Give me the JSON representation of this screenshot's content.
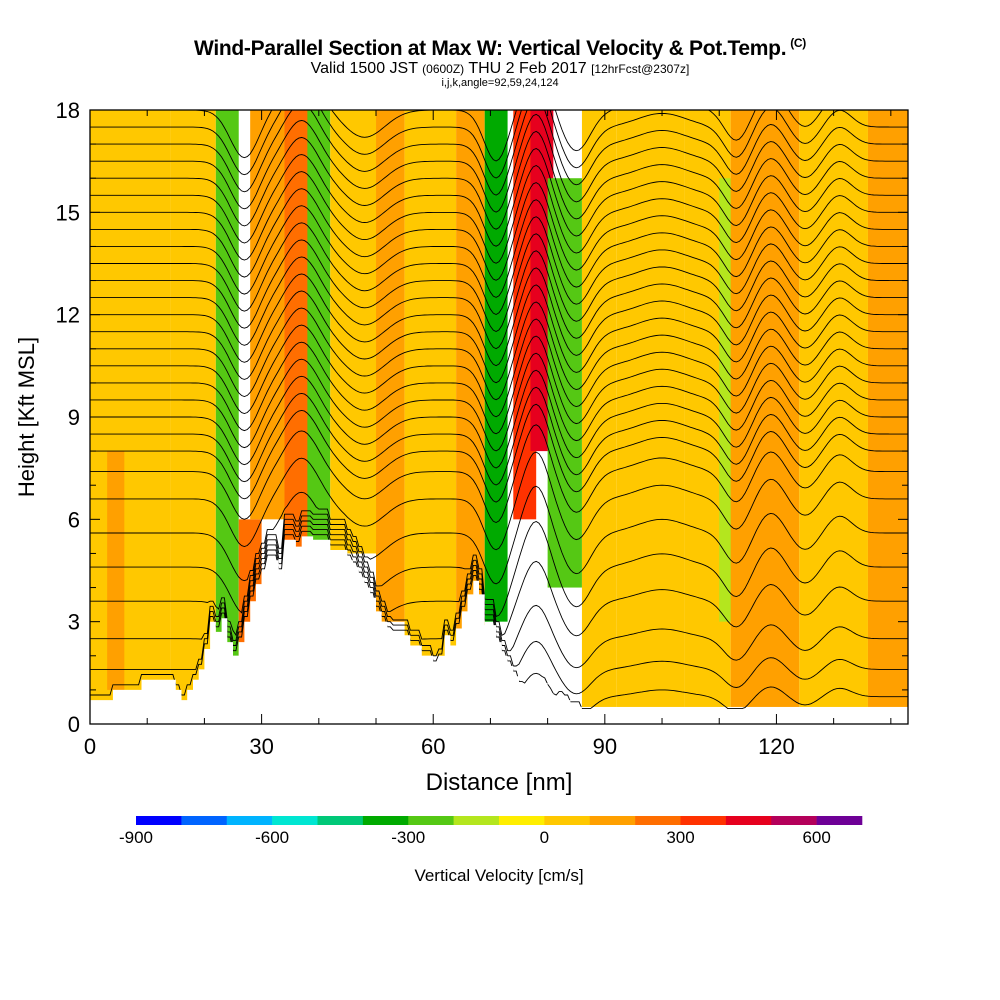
{
  "header": {
    "title": "Wind-Parallel Section at Max W: Vertical Velocity & Pot.Temp.",
    "title_tag": "(C)",
    "subtitle_main": "Valid 1500 JST",
    "subtitle_z": "(0600Z)",
    "subtitle_date": "THU 2 Feb 2017",
    "subtitle_fcst": "[12hrFcst@2307z]",
    "subsubtitle": "i,j,k,angle=92,59,24,124"
  },
  "chart_data": {
    "type": "heatmap",
    "xlabel": "Distance [nm]",
    "ylabel": "Height [Kft MSL]",
    "xlim": [
      0,
      143
    ],
    "ylim": [
      0,
      18
    ],
    "x_ticks": [
      0,
      30,
      60,
      90,
      120
    ],
    "y_ticks": [
      0,
      3,
      6,
      9,
      12,
      15,
      18
    ],
    "grid": false,
    "colorbar": {
      "label": "Vertical Velocity [cm/s]",
      "levels": [
        -900,
        -800,
        -700,
        -600,
        -500,
        -400,
        -300,
        -200,
        -100,
        0,
        100,
        200,
        300,
        400,
        500,
        600,
        700
      ],
      "tick_labels": [
        "-900",
        "-600",
        "-300",
        "0",
        "300",
        "600"
      ],
      "colors": [
        "#0000ff",
        "#0064ff",
        "#00b4ff",
        "#00e6d2",
        "#00c878",
        "#00aa00",
        "#55c814",
        "#b4e61e",
        "#ffee00",
        "#ffc800",
        "#ffa000",
        "#ff6e00",
        "#ff3200",
        "#e6001e",
        "#b4005a",
        "#6e0096"
      ]
    },
    "velocity_cells": [
      {
        "x": [
          0,
          14
        ],
        "y": [
          0,
          18
        ],
        "value": 50
      },
      {
        "x": [
          3,
          6
        ],
        "y": [
          1,
          8
        ],
        "value": 120
      },
      {
        "x": [
          14,
          22
        ],
        "y": [
          0,
          18
        ],
        "value": 20
      },
      {
        "x": [
          22,
          26
        ],
        "y": [
          2,
          18
        ],
        "value": -230
      },
      {
        "x": [
          26,
          30
        ],
        "y": [
          1,
          6
        ],
        "value": 250
      },
      {
        "x": [
          28,
          34
        ],
        "y": [
          6,
          18
        ],
        "value": 100
      },
      {
        "x": [
          34,
          39
        ],
        "y": [
          4,
          18
        ],
        "value": 240
      },
      {
        "x": [
          38,
          42
        ],
        "y": [
          5,
          18
        ],
        "value": -250
      },
      {
        "x": [
          42,
          50
        ],
        "y": [
          5,
          18
        ],
        "value": 20
      },
      {
        "x": [
          50,
          55
        ],
        "y": [
          3,
          18
        ],
        "value": 120
      },
      {
        "x": [
          55,
          64
        ],
        "y": [
          2,
          18
        ],
        "value": 40
      },
      {
        "x": [
          64,
          69
        ],
        "y": [
          2,
          18
        ],
        "value": 130
      },
      {
        "x": [
          69,
          73
        ],
        "y": [
          3,
          18
        ],
        "value": -330
      },
      {
        "x": [
          74,
          78
        ],
        "y": [
          6,
          18
        ],
        "value": 320
      },
      {
        "x": [
          77,
          81
        ],
        "y": [
          8,
          18
        ],
        "value": 420
      },
      {
        "x": [
          80,
          86
        ],
        "y": [
          4,
          16
        ],
        "value": -250
      },
      {
        "x": [
          86,
          92
        ],
        "y": [
          0.5,
          18
        ],
        "value": 30
      },
      {
        "x": [
          92,
          104
        ],
        "y": [
          0.5,
          18
        ],
        "value": 90
      },
      {
        "x": [
          104,
          112
        ],
        "y": [
          0.5,
          18
        ],
        "value": 20
      },
      {
        "x": [
          110,
          114
        ],
        "y": [
          3,
          16
        ],
        "value": -120
      },
      {
        "x": [
          112,
          124
        ],
        "y": [
          0.5,
          18
        ],
        "value": 110
      },
      {
        "x": [
          124,
          136
        ],
        "y": [
          0.5,
          18
        ],
        "value": 30
      },
      {
        "x": [
          136,
          143
        ],
        "y": [
          0.5,
          18
        ],
        "value": 140
      }
    ],
    "terrain": {
      "x": [
        0,
        4,
        4,
        9,
        9,
        15,
        15,
        16,
        16,
        17,
        17,
        18,
        18,
        19,
        19,
        20,
        20,
        21,
        21,
        22,
        22,
        23,
        23,
        24,
        24,
        25,
        25,
        26,
        26,
        27,
        27,
        28,
        28,
        29,
        29,
        30,
        30,
        31,
        31,
        33,
        33,
        34,
        34,
        36,
        36,
        37,
        37,
        39,
        39,
        42,
        42,
        45,
        45,
        46,
        46,
        47,
        47,
        48,
        48,
        49,
        49,
        50,
        50,
        51,
        51,
        52,
        52,
        53,
        53,
        56,
        56,
        58,
        58,
        60,
        60,
        61,
        61,
        62,
        62,
        63,
        63,
        64,
        64,
        65,
        65,
        66,
        66,
        67,
        67,
        68,
        68,
        69,
        69,
        71,
        71,
        72,
        72,
        73,
        73,
        74,
        74,
        75,
        75,
        76,
        76,
        77,
        77,
        78,
        78,
        79,
        79,
        80,
        80,
        81,
        81,
        82,
        82,
        83,
        83,
        84,
        84,
        86,
        86,
        88,
        88,
        90,
        90,
        96,
        96,
        143
      ],
      "y": [
        0.7,
        0.7,
        1.0,
        1.0,
        1.3,
        1.3,
        1.0,
        1.0,
        0.7,
        0.7,
        1.0,
        1.0,
        1.3,
        1.3,
        1.6,
        1.6,
        2.2,
        2.2,
        3.0,
        3.0,
        2.7,
        2.7,
        3.1,
        3.1,
        2.4,
        2.4,
        2.0,
        2.0,
        2.4,
        2.4,
        3.0,
        3.0,
        3.6,
        3.6,
        4.1,
        4.1,
        4.4,
        4.4,
        4.8,
        4.8,
        4.4,
        4.4,
        5.4,
        5.4,
        5.2,
        5.2,
        5.5,
        5.5,
        5.4,
        5.4,
        5.1,
        5.1,
        4.8,
        4.8,
        4.6,
        4.6,
        4.3,
        4.3,
        4.0,
        4.0,
        3.7,
        3.7,
        3.3,
        3.3,
        3.0,
        3.0,
        2.7,
        2.7,
        2.6,
        2.6,
        2.3,
        2.3,
        2.0,
        2.0,
        1.7,
        1.7,
        1.9,
        1.9,
        2.6,
        2.6,
        2.3,
        2.3,
        2.8,
        2.8,
        3.3,
        3.3,
        3.8,
        3.8,
        4.2,
        4.2,
        3.8,
        3.8,
        2.9,
        2.9,
        2.4,
        2.4,
        2.0,
        2.0,
        1.7,
        1.7,
        1.4,
        1.4,
        1.1,
        1.1,
        0.9,
        0.9,
        1.1,
        1.1,
        0.9,
        0.9,
        1.2,
        1.2,
        0.9,
        0.9,
        0.7,
        0.7,
        0.8,
        0.8,
        0.7,
        0.7,
        0.5,
        0.5,
        0.3,
        0.3,
        0.3,
        0.3,
        0.3,
        0.3,
        0.3,
        0.3
      ]
    },
    "isentropes": {
      "base_heights": [
        0.8,
        1.6,
        2.5,
        3.6,
        4.6,
        5.6,
        6.6,
        7.4,
        8.0,
        8.5,
        9.0,
        9.5,
        10.0,
        10.5,
        11.0,
        11.5,
        12.0,
        12.5,
        13.0,
        13.5,
        14.0,
        14.5,
        15.0,
        15.5,
        16.0,
        16.5,
        17.0,
        17.5,
        18.0
      ],
      "waves": [
        {
          "center": 27,
          "width": 3.5,
          "amplitude": -1.4
        },
        {
          "center": 37,
          "width": 4,
          "amplitude": 1.2
        },
        {
          "center": 48,
          "width": 5,
          "amplitude": -0.8
        },
        {
          "center": 71,
          "width": 3,
          "amplitude": -1.5
        },
        {
          "center": 78,
          "width": 3,
          "amplitude": 1.4
        },
        {
          "center": 85,
          "width": 3.5,
          "amplitude": -1.2
        },
        {
          "center": 100,
          "width": 6,
          "amplitude": 0.4
        },
        {
          "center": 113,
          "width": 3,
          "amplitude": -0.9
        },
        {
          "center": 119,
          "width": 3,
          "amplitude": 0.6
        },
        {
          "center": 125,
          "width": 3,
          "amplitude": -0.5
        },
        {
          "center": 131,
          "width": 3,
          "amplitude": 0.5
        }
      ]
    }
  }
}
